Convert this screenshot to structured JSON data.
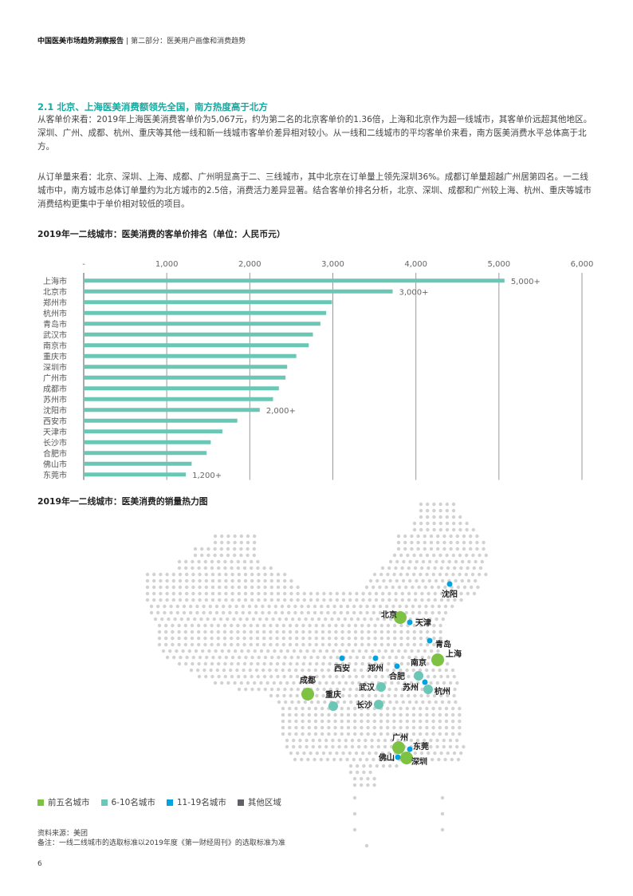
{
  "header": {
    "report_title": "中国医美市场趋势洞察报告",
    "separator": "|",
    "section": "第二部分：医美用户画像和消费趋势"
  },
  "section": {
    "title": "2.1 北京、上海医美消费额领先全国，南方热度高于北方",
    "paragraphs": [
      "从客单价来看：2019年上海医美消费客单价为5,067元，约为第二名的北京客单价的1.36倍，上海和北京作为超一线城市，其客单价远超其他地区。深圳、广州、成都、杭州、重庆等其他一线和新一线城市客单价差异相对较小。从一线和二线城市的平均客单价来看，南方医美消费水平总体高于北方。",
      "从订单量来看：北京、深圳、上海、成都、广州明显高于二、三线城市，其中北京在订单量上领先深圳36%。成都订单量超越广州居第四名。一二线城市中，南方城市总体订单量约为北方城市的2.5倍，消费活力差异显著。结合客单价排名分析，北京、深圳、成都和广州较上海、杭州、重庆等城市消费结构更集中于单价相对较低的项目。"
    ]
  },
  "chart_data": [
    {
      "type": "bar",
      "orientation": "horizontal",
      "title": "2019年一二线城市：医美消费的客单价排名（单位：人民币元）",
      "xlabel": "",
      "ylabel": "",
      "xlim": [
        0,
        6000
      ],
      "x_ticks": [
        "-",
        "1,000",
        "2,000",
        "3,000",
        "4,000",
        "5,000",
        "6,000"
      ],
      "x_tick_values": [
        0,
        1000,
        2000,
        3000,
        4000,
        5000,
        6000
      ],
      "grid": true,
      "color": "#6ac7b6",
      "categories": [
        "上海市",
        "北京市",
        "郑州市",
        "杭州市",
        "青岛市",
        "武汉市",
        "南京市",
        "重庆市",
        "深圳市",
        "广州市",
        "成都市",
        "苏州市",
        "沈阳市",
        "西安市",
        "天津市",
        "长沙市",
        "合肥市",
        "佛山市",
        "东莞市"
      ],
      "values": [
        5067,
        3720,
        2990,
        2920,
        2850,
        2760,
        2710,
        2560,
        2450,
        2430,
        2350,
        2280,
        2120,
        1850,
        1670,
        1530,
        1480,
        1300,
        1230
      ],
      "annotations": [
        {
          "category": "上海市",
          "text": "5,000+"
        },
        {
          "category": "北京市",
          "text": "3,000+"
        },
        {
          "category": "沈阳市",
          "text": "2,000+"
        },
        {
          "category": "东莞市",
          "text": "1,200+"
        }
      ]
    },
    {
      "type": "scatter",
      "subtype": "map-bubble",
      "title": "2019年一二线城市：医美消费的销量热力图",
      "legend_position": "bottom-left",
      "legend": [
        {
          "label": "前五名城市",
          "color": "#7dc242"
        },
        {
          "label": "6-10名城市",
          "color": "#6ac7b6"
        },
        {
          "label": "11-19名城市",
          "color": "#00a3e0"
        },
        {
          "label": "其他区域",
          "color": "#5f6167"
        }
      ],
      "background_dot_color": "#d2d2d2",
      "cities": [
        {
          "name": "北京",
          "tier": 1
        },
        {
          "name": "上海",
          "tier": 1
        },
        {
          "name": "成都",
          "tier": 1
        },
        {
          "name": "广州",
          "tier": 1
        },
        {
          "name": "深圳",
          "tier": 1
        },
        {
          "name": "南京",
          "tier": 2
        },
        {
          "name": "杭州",
          "tier": 2
        },
        {
          "name": "武汉",
          "tier": 2
        },
        {
          "name": "重庆",
          "tier": 2
        },
        {
          "name": "长沙",
          "tier": 2
        },
        {
          "name": "沈阳",
          "tier": 3
        },
        {
          "name": "天津",
          "tier": 3
        },
        {
          "name": "青岛",
          "tier": 3
        },
        {
          "name": "西安",
          "tier": 3
        },
        {
          "name": "郑州",
          "tier": 3
        },
        {
          "name": "合肥",
          "tier": 3
        },
        {
          "name": "苏州",
          "tier": 3
        },
        {
          "name": "东莞",
          "tier": 3
        },
        {
          "name": "佛山",
          "tier": 3
        }
      ]
    }
  ],
  "legend": [
    {
      "label": "前五名城市",
      "color": "#7dc242"
    },
    {
      "label": "6-10名城市",
      "color": "#6ac7b6"
    },
    {
      "label": "11-19名城市",
      "color": "#00a3e0"
    },
    {
      "label": "其他区域",
      "color": "#5f6167"
    }
  ],
  "notes": {
    "source": "资料来源：美团",
    "remark": "备注：一线二线城市的选取标准以2019年度《第一财经周刊》的选取标准为准"
  },
  "page_number": "6"
}
